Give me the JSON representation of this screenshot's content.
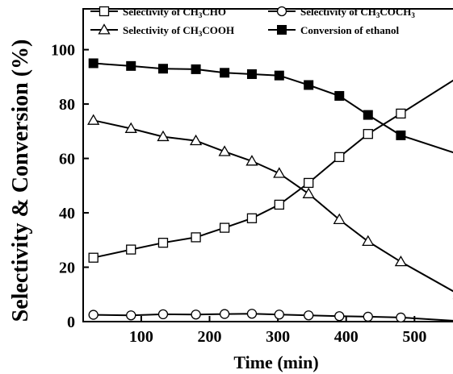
{
  "chart_data": {
    "type": "line",
    "xlabel": "Time (min)",
    "ylabel": "Selectivity & Conversion (%)",
    "xlim": [
      15,
      580
    ],
    "ylim": [
      0,
      115
    ],
    "x_ticks": [
      100,
      200,
      300,
      400,
      500
    ],
    "y_ticks": [
      0,
      20,
      40,
      60,
      80,
      100
    ],
    "grid": false,
    "legend_position": "top",
    "series": [
      {
        "name": "Selectivity of CH3CHO",
        "name_parts": [
          {
            "t": "Selectivity of CH"
          },
          {
            "t": "3",
            "sub": true
          },
          {
            "t": "CHO"
          }
        ],
        "marker": "open-square",
        "x": [
          30,
          85,
          132,
          180,
          222,
          262,
          302,
          345,
          390,
          432,
          480,
          565
        ],
        "y": [
          23.5,
          26.5,
          29,
          31,
          34.5,
          38,
          43,
          51,
          60.5,
          69,
          76.5,
          90
        ]
      },
      {
        "name": "Selectivity of CH3COCH3",
        "name_parts": [
          {
            "t": "Selectivity of CH"
          },
          {
            "t": "3",
            "sub": true
          },
          {
            "t": "COCH"
          },
          {
            "t": "3",
            "sub": true
          }
        ],
        "marker": "open-circle",
        "x": [
          30,
          85,
          132,
          180,
          222,
          262,
          302,
          345,
          390,
          432,
          480,
          565
        ],
        "y": [
          2.5,
          2.3,
          2.7,
          2.6,
          2.8,
          2.9,
          2.6,
          2.3,
          2,
          1.8,
          1.5,
          0.2
        ]
      },
      {
        "name": "Selectivity of CH3COOH",
        "name_parts": [
          {
            "t": "Selectivity of CH"
          },
          {
            "t": "3",
            "sub": true
          },
          {
            "t": "COOH"
          }
        ],
        "marker": "open-triangle",
        "x": [
          30,
          85,
          132,
          180,
          222,
          262,
          302,
          345,
          390,
          432,
          480,
          565
        ],
        "y": [
          74,
          71,
          68,
          66.5,
          62.5,
          59,
          54.5,
          47,
          37.5,
          29.5,
          22,
          10
        ]
      },
      {
        "name": "Conversion of ethanol",
        "name_parts": [
          {
            "t": "Conversion of ethanol"
          }
        ],
        "marker": "filled-square",
        "x": [
          30,
          85,
          132,
          180,
          222,
          262,
          302,
          345,
          390,
          432,
          480,
          565
        ],
        "y": [
          95,
          94,
          93,
          92.8,
          91.5,
          91,
          90.5,
          87,
          83,
          76,
          68.5,
          61.5
        ]
      }
    ]
  }
}
